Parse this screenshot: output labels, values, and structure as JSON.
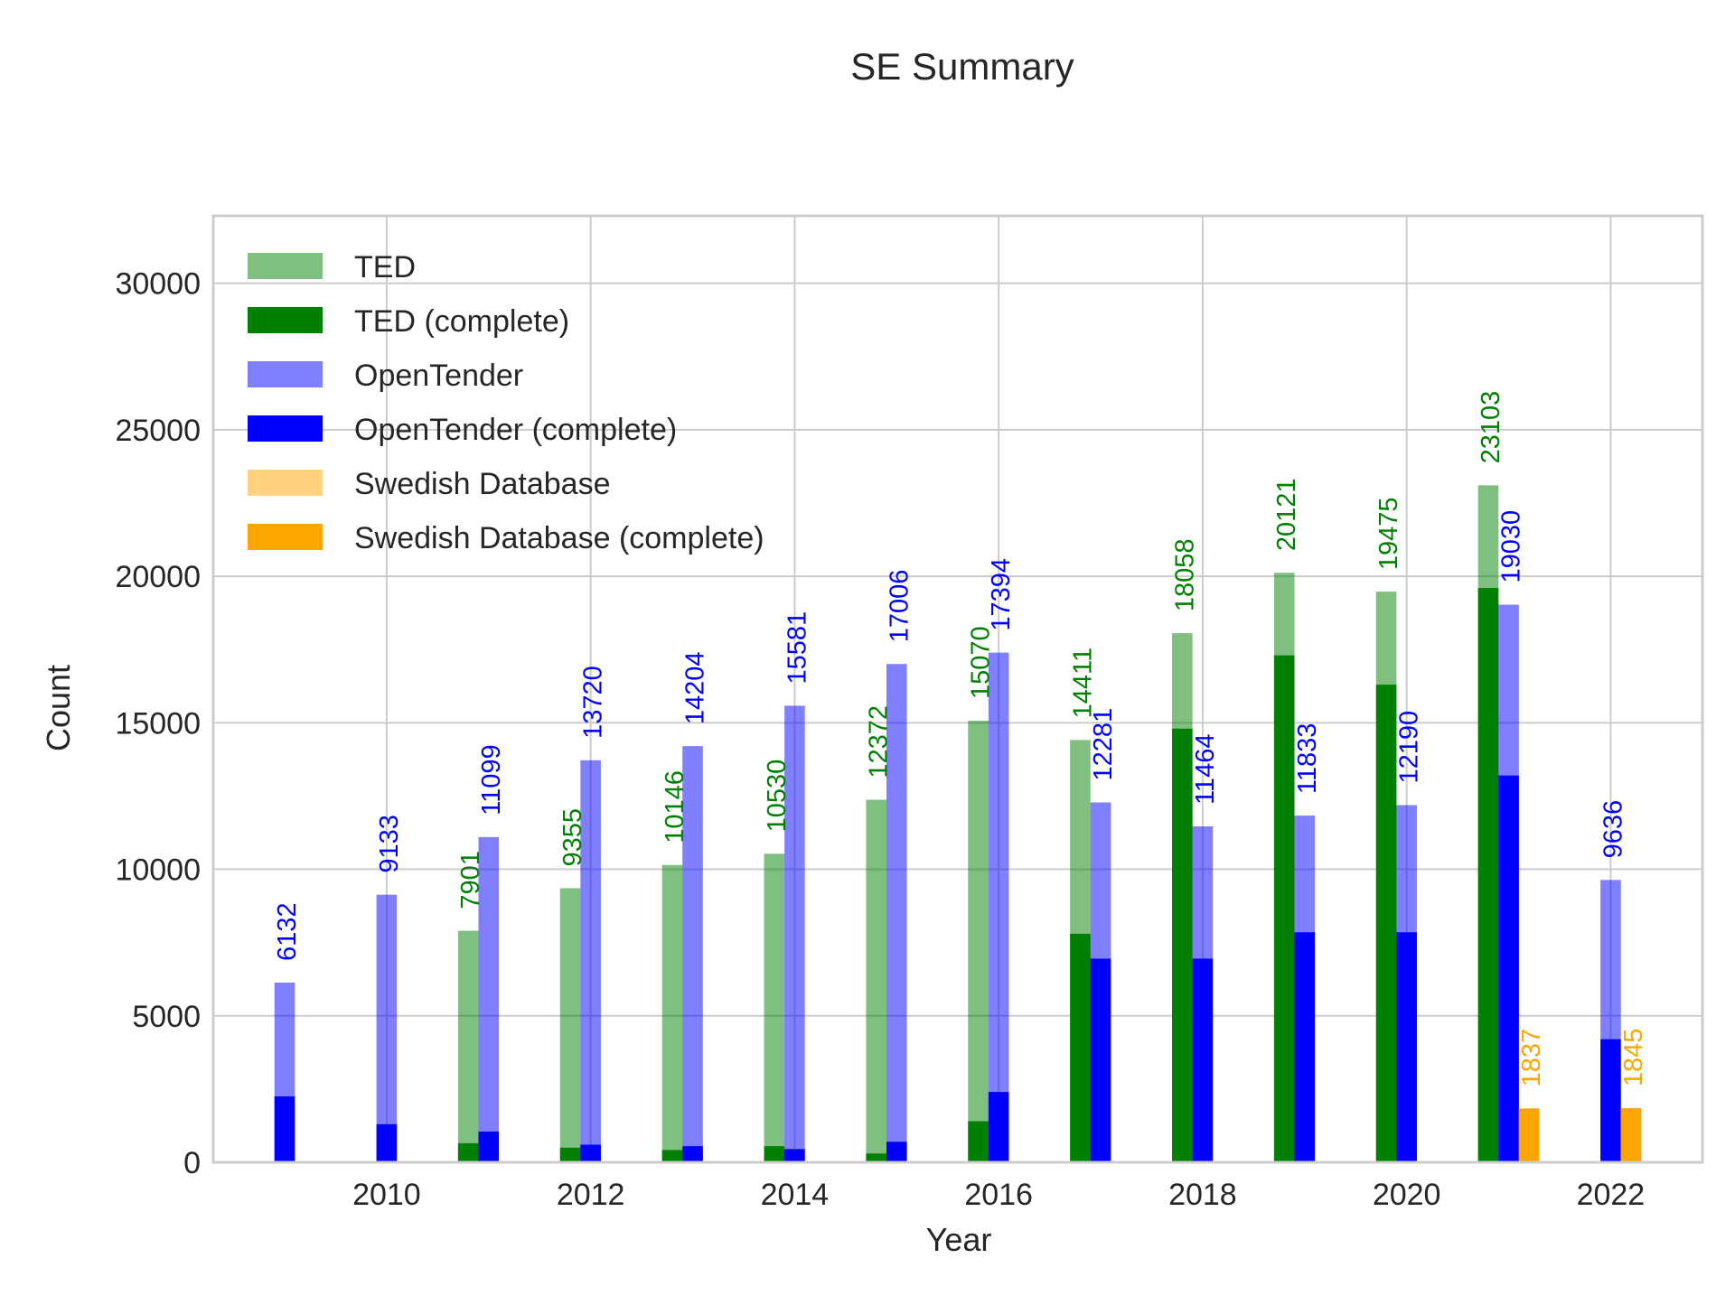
{
  "chart_data": {
    "type": "bar",
    "title": "SE Summary",
    "xlabel": "Year",
    "ylabel": "Count",
    "xlim": [
      2008.3,
      2022.9
    ],
    "ylim": [
      0,
      32300
    ],
    "x_ticks": [
      2010,
      2012,
      2014,
      2016,
      2018,
      2020,
      2022
    ],
    "y_ticks": [
      0,
      5000,
      10000,
      15000,
      20000,
      25000,
      30000
    ],
    "grid": true,
    "legend_position": "top-left",
    "series": [
      {
        "name": "TED",
        "color": "#008000",
        "opacity": 0.5,
        "label_color": "#008000",
        "years": [
          2011,
          2012,
          2013,
          2014,
          2015,
          2016,
          2017,
          2018,
          2019,
          2020,
          2021
        ],
        "values": [
          7901,
          9355,
          10146,
          10530,
          12372,
          15070,
          14411,
          18058,
          20121,
          19475,
          23103
        ],
        "data_labels": [
          "7901",
          "9355",
          "10146",
          "10530",
          "12372",
          "15070",
          "14411",
          "18058",
          "20121",
          "19475",
          "23103"
        ]
      },
      {
        "name": "TED (complete)",
        "color": "#008000",
        "opacity": 1,
        "years": [
          2011,
          2012,
          2013,
          2014,
          2015,
          2016,
          2017,
          2018,
          2019,
          2020,
          2021
        ],
        "values": [
          650,
          500,
          420,
          550,
          300,
          1400,
          7800,
          14800,
          17300,
          16300,
          19600
        ]
      },
      {
        "name": "OpenTender",
        "color": "#0000ff",
        "opacity": 0.5,
        "label_color": "#0000ff",
        "years": [
          2009,
          2010,
          2011,
          2012,
          2013,
          2014,
          2015,
          2016,
          2017,
          2018,
          2019,
          2020,
          2021,
          2022
        ],
        "values": [
          6132,
          9133,
          11099,
          13720,
          14204,
          15581,
          17006,
          17394,
          12281,
          11464,
          11833,
          12190,
          19030,
          9636
        ],
        "data_labels": [
          "6132",
          "9133",
          "11099",
          "13720",
          "14204",
          "15581",
          "17006",
          "17394",
          "12281",
          "11464",
          "11833",
          "12190",
          "19030",
          "9636"
        ]
      },
      {
        "name": "OpenTender (complete)",
        "color": "#0000ff",
        "opacity": 1,
        "years": [
          2009,
          2010,
          2011,
          2012,
          2013,
          2014,
          2015,
          2016,
          2017,
          2018,
          2019,
          2020,
          2021,
          2022
        ],
        "values": [
          2250,
          1300,
          1050,
          600,
          550,
          450,
          700,
          2400,
          6950,
          6950,
          7850,
          7850,
          13200,
          4200
        ]
      },
      {
        "name": "Swedish Database",
        "color": "#ffa500",
        "opacity": 0.5,
        "label_color": "#ffa500",
        "years": [
          2021,
          2022
        ],
        "values": [
          1837,
          1845
        ],
        "data_labels": [
          "1837",
          "1845"
        ]
      },
      {
        "name": "Swedish Database (complete)",
        "color": "#ffa500",
        "opacity": 1,
        "years": [
          2021,
          2022
        ],
        "values": [
          1837,
          1845
        ]
      }
    ]
  }
}
